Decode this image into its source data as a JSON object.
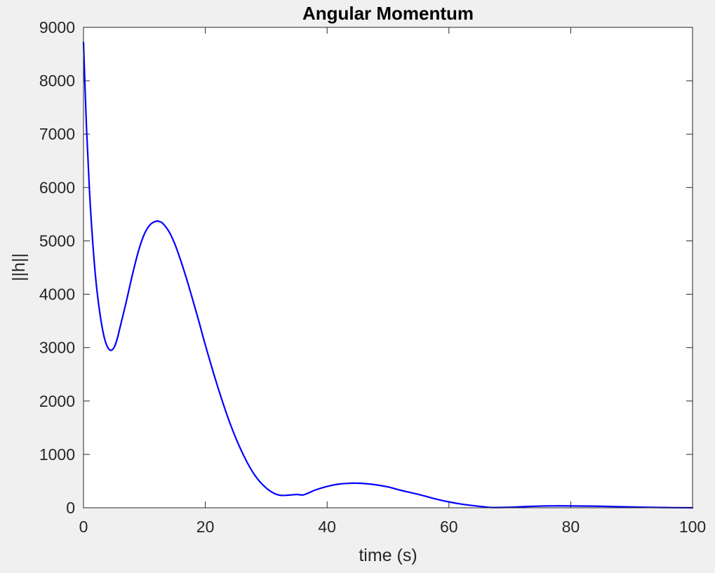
{
  "chart_data": {
    "type": "line",
    "title": "Angular Momentum",
    "xlabel": "time (s)",
    "ylabel": "||h||",
    "xlim": [
      0,
      100
    ],
    "ylim": [
      0,
      9000
    ],
    "xticks": [
      0,
      20,
      40,
      60,
      80,
      100
    ],
    "yticks": [
      0,
      1000,
      2000,
      3000,
      4000,
      5000,
      6000,
      7000,
      8000,
      9000
    ],
    "grid": false,
    "legend": "none",
    "series": [
      {
        "color": "#0000ff",
        "x": [
          0,
          0.5,
          1,
          1.5,
          2,
          2.5,
          3,
          3.5,
          4,
          4.5,
          5,
          5.5,
          6,
          7,
          8,
          9,
          10,
          11,
          12,
          12.5,
          13,
          14,
          15,
          16,
          17,
          18,
          19,
          20,
          22,
          24,
          26,
          28,
          30,
          32,
          34,
          35,
          36,
          37,
          38,
          40,
          42,
          44,
          45,
          46,
          48,
          50,
          52,
          55,
          58,
          60,
          62,
          64,
          66,
          67,
          68,
          70,
          72,
          74,
          76,
          78,
          80,
          85,
          90,
          95,
          100
        ],
        "y": [
          8720,
          7100,
          5900,
          5000,
          4300,
          3800,
          3420,
          3150,
          3000,
          2950,
          3000,
          3150,
          3380,
          3850,
          4350,
          4800,
          5130,
          5310,
          5370,
          5360,
          5330,
          5180,
          4940,
          4620,
          4260,
          3870,
          3470,
          3050,
          2280,
          1600,
          1050,
          630,
          370,
          240,
          240,
          250,
          240,
          280,
          330,
          400,
          445,
          460,
          460,
          455,
          430,
          390,
          330,
          250,
          160,
          110,
          70,
          40,
          15,
          5,
          5,
          10,
          20,
          28,
          34,
          36,
          35,
          28,
          15,
          5,
          0
        ]
      }
    ]
  }
}
